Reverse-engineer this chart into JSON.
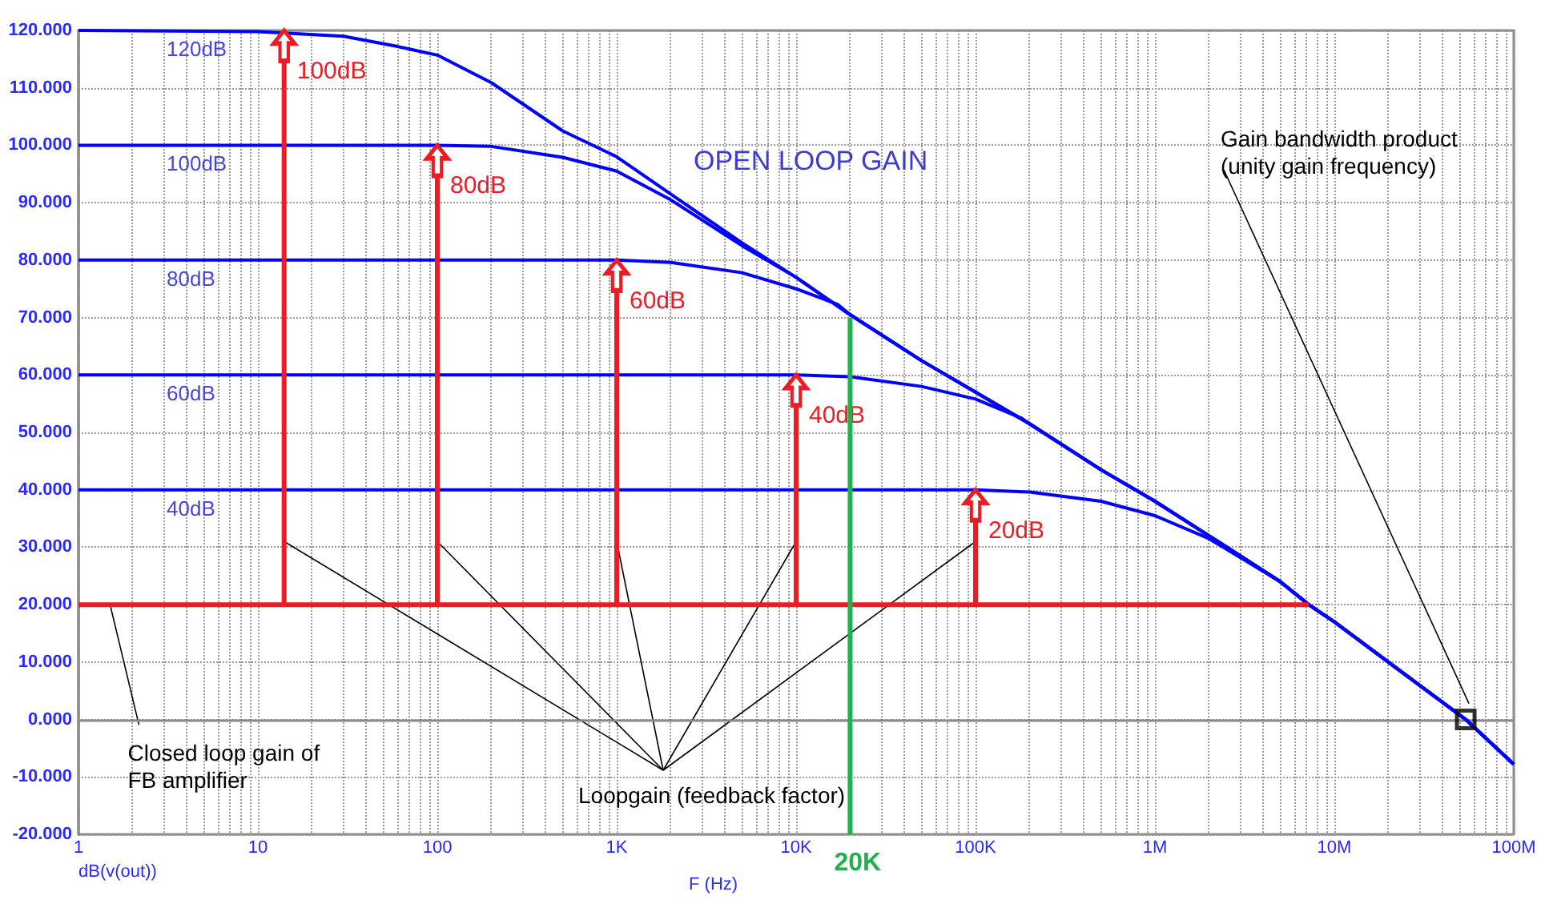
{
  "chart_data": {
    "type": "line",
    "xlabel": "F (Hz)",
    "log": "x",
    "grid": true,
    "xlim": [
      1,
      100000000
    ],
    "xticks": [
      1,
      10,
      100,
      {
        "value": 1000,
        "label": "1K"
      },
      {
        "value": 10000,
        "label": "10K"
      },
      {
        "value": 100000,
        "label": "100K"
      },
      {
        "value": 1000000,
        "label": "1M"
      },
      {
        "value": 10000000,
        "label": "10M"
      },
      {
        "value": 100000000,
        "label": "100M"
      }
    ],
    "ylim": [
      -20,
      120
    ],
    "yticks": [
      {
        "value": -20,
        "label": "-20.000"
      },
      {
        "value": -10,
        "label": "-10.000"
      },
      {
        "value": 0,
        "label": "0.000"
      },
      {
        "value": 10,
        "label": "10.000"
      },
      {
        "value": 20,
        "label": "20.000"
      },
      {
        "value": 30,
        "label": "30.000"
      },
      {
        "value": 40,
        "label": "40.000"
      },
      {
        "value": 50,
        "label": "50.000"
      },
      {
        "value": 60,
        "label": "60.000"
      },
      {
        "value": 70,
        "label": "70.000"
      },
      {
        "value": 80,
        "label": "80.000"
      },
      {
        "value": 90,
        "label": "90.000"
      },
      {
        "value": 100,
        "label": "100.000"
      },
      {
        "value": 110,
        "label": "110.000"
      },
      {
        "value": 120,
        "label": "120.000"
      }
    ],
    "series": [
      {
        "name": "120dB",
        "color": "#0000ff",
        "x": [
          1,
          10,
          30,
          60,
          100,
          200,
          500,
          1000,
          2000,
          5000,
          10000,
          20000,
          50000,
          100000,
          200000,
          500000,
          1000000,
          2000000,
          5000000,
          7200000,
          10000000,
          20000000,
          54000000,
          100000000
        ],
        "values": [
          120,
          119.8,
          119,
          117.2,
          115.7,
          110.9,
          102.5,
          98,
          91.5,
          83,
          77,
          70.5,
          62.5,
          57,
          51.5,
          43.5,
          38,
          32,
          24,
          20,
          17,
          10,
          0,
          -7.8
        ]
      },
      {
        "name": "100dB",
        "color": "#0000ff",
        "x": [
          1,
          100,
          200,
          500,
          1000,
          2000,
          5000,
          10000,
          20000,
          50000,
          100000,
          200000,
          500000,
          1000000,
          2000000,
          5000000,
          7200000,
          10000000,
          20000000,
          54000000,
          100000000
        ],
        "values": [
          100,
          100,
          99.8,
          97.9,
          95.5,
          90.5,
          82.5,
          77,
          70.5,
          62.5,
          57,
          51.5,
          43.5,
          38,
          32,
          24,
          20,
          17,
          10,
          0,
          -7.8
        ]
      },
      {
        "name": "80dB",
        "color": "#0000ff",
        "x": [
          1,
          1000,
          2000,
          5000,
          10000,
          17000,
          20000,
          50000,
          100000,
          200000,
          500000,
          1000000,
          2000000,
          5000000,
          7200000,
          10000000,
          20000000,
          54000000,
          100000000
        ],
        "values": [
          80,
          80,
          79.6,
          77.8,
          75,
          72.3,
          70.5,
          62.5,
          57,
          51.5,
          43.5,
          38,
          32,
          24,
          20,
          17,
          10,
          0,
          -7.8
        ]
      },
      {
        "name": "60dB",
        "color": "#0000ff",
        "x": [
          1,
          10000,
          20000,
          50000,
          100000,
          180000,
          200000,
          500000,
          1000000,
          2000000,
          5000000,
          7200000,
          10000000,
          20000000,
          54000000,
          100000000
        ],
        "values": [
          60,
          60,
          59.7,
          58,
          55.8,
          52.5,
          51.5,
          43.5,
          38,
          32,
          24,
          20,
          17,
          10,
          0,
          -7.8
        ]
      },
      {
        "name": "40dB",
        "color": "#0000ff",
        "x": [
          1,
          100000,
          200000,
          500000,
          1000000,
          2000000,
          5000000,
          7200000,
          10000000,
          20000000,
          54000000,
          100000000
        ],
        "values": [
          40,
          40,
          39.6,
          38,
          35.5,
          31.5,
          24,
          20,
          17,
          10,
          0,
          -7.8
        ]
      },
      {
        "color": "#ed1c24",
        "x": [
          1,
          7200000
        ],
        "values": [
          20,
          20
        ]
      },
      {
        "color": "#ed1c24",
        "x": [
          14,
          14
        ],
        "values": [
          20,
          120
        ]
      },
      {
        "color": "#ed1c24",
        "x": [
          100,
          100
        ],
        "values": [
          20,
          100
        ]
      },
      {
        "color": "#ed1c24",
        "x": [
          1000,
          1000
        ],
        "values": [
          20,
          80
        ]
      },
      {
        "color": "#ed1c24",
        "x": [
          10000,
          10000
        ],
        "values": [
          20,
          60
        ]
      },
      {
        "color": "#ed1c24",
        "x": [
          100000,
          100000
        ],
        "values": [
          20,
          40
        ]
      },
      {
        "name": "20K",
        "color": "#22b14c",
        "x": [
          20000,
          20000
        ],
        "values": [
          -20,
          70
        ]
      },
      {
        "type": "scatter",
        "marker": "square",
        "color": "#000000",
        "x": [
          54000000
        ],
        "values": [
          0
        ]
      }
    ],
    "annotations": [
      "OPEN LOOP GAIN",
      "Gain bandwidth product\n(unity gain frequency)",
      "dB(v(out))",
      {
        "text": "Loopgain (feedback factor)",
        "x": 1000,
        "y": 31
      },
      {
        "text": "Closed loop gain of\nFB amplifier",
        "x": 1.5,
        "y": 20
      },
      {
        "text": "100dB",
        "x": 14,
        "y": 120
      },
      {
        "text": "80dB",
        "x": 100,
        "y": 100
      },
      {
        "text": "60dB",
        "x": 1000,
        "y": 80
      },
      {
        "text": "40dB",
        "x": 10000,
        "y": 60
      },
      {
        "text": "20dB",
        "x": 100000,
        "y": 40
      }
    ]
  }
}
